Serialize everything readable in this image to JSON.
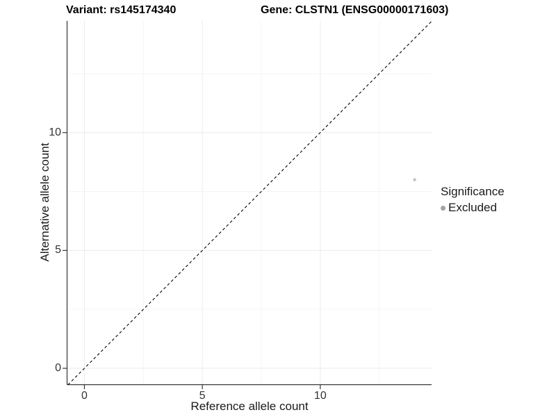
{
  "chart_data": {
    "type": "scatter",
    "title_left": "Variant: rs145174340",
    "title_right": "Gene: CLSTN1 (ENSG00000171603)",
    "xlabel": "Reference allele count",
    "ylabel": "Alternative allele count",
    "xlim": [
      -0.72,
      14.72
    ],
    "ylim": [
      -0.68,
      14.74
    ],
    "x_ticks": [
      0,
      5,
      10
    ],
    "y_ticks": [
      0,
      5,
      10
    ],
    "x_minor_ticks": [
      2.5,
      7.5,
      12.5
    ],
    "y_minor_ticks": [
      2.5,
      7.5,
      12.5
    ],
    "grid": true,
    "identity_line": {
      "style": "dashed",
      "color": "#000000",
      "from": -0.7,
      "to": 14.72
    },
    "series": [
      {
        "name": "Excluded",
        "color": "#c6c6c6",
        "point_radius": 2.3,
        "points": [
          {
            "x": 14,
            "y": 8
          }
        ]
      }
    ],
    "legend": {
      "title": "Significance",
      "position": "right",
      "items": [
        {
          "label": "Excluded",
          "color": "#a3a3a3"
        }
      ]
    },
    "style": {
      "axis_line_color": "#343434",
      "tick_color": "#343434",
      "major_grid_color": "#ebebeb",
      "minor_grid_color": "#f5f5f5",
      "background": "#ffffff"
    }
  }
}
